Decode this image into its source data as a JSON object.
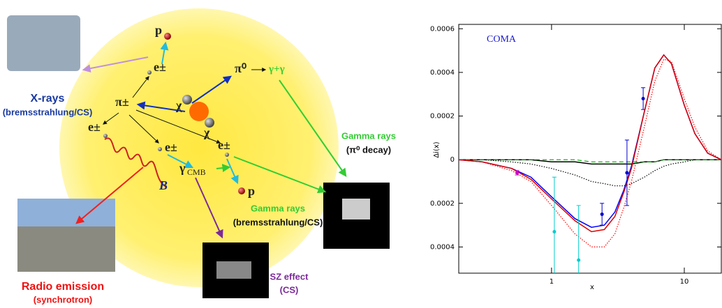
{
  "diagram": {
    "labels": {
      "p_top": "p",
      "e_top": "e±",
      "pi0": "π⁰",
      "gg": "γ+γ",
      "pipm": "π±",
      "chi1": "χ",
      "chi2": "χ",
      "e_left": "e±",
      "e_mid": "e±",
      "e_right": "e±",
      "gamma": "γ",
      "cmb": "CMB",
      "B": "B",
      "p_bottom": "p"
    },
    "captions": {
      "xrays": "X-rays",
      "xrays_sub": "(bremsstrahlung/CS)",
      "gamma1": "Gamma rays",
      "gamma1_sub": "(π⁰ decay)",
      "gamma2": "Gamma rays",
      "gamma2_sub": "(bremsstrahlung/CS)",
      "radio": "Radio emission",
      "radio_sub": "(synchrotron)",
      "sz": "SZ effect",
      "sz_sub": "(CS)"
    }
  },
  "chart_data": {
    "type": "line",
    "annotation": "COMA",
    "ylabel": "Δi(x)",
    "xlabel": "x",
    "xscale": "log",
    "xlim": [
      0.2,
      19
    ],
    "xticks": [
      1,
      10
    ],
    "ylim": [
      -0.00052,
      0.00062
    ],
    "yticks": [
      0.0006,
      0.0004,
      0.0002,
      0,
      {
        "value": -0.0002,
        "label": "0.0002"
      },
      {
        "value": -0.0004,
        "label": "0.0004"
      }
    ],
    "x": [
      0.2,
      0.3,
      0.5,
      0.7,
      1,
      1.5,
      2,
      2.5,
      3,
      3.5,
      4,
      5,
      6,
      7,
      8,
      10,
      12,
      15,
      19
    ],
    "series": [
      {
        "color": "#000000",
        "dash": "solid",
        "values": [
          0,
          0,
          0,
          0,
          -1e-05,
          -1e-05,
          -2e-05,
          -2e-05,
          -2e-05,
          -2e-05,
          -2e-05,
          -1e-05,
          -1e-05,
          0,
          0,
          0,
          0,
          0,
          0
        ]
      },
      {
        "color": "#000000",
        "dash": "dotted",
        "values": [
          0,
          0,
          -1e-05,
          -2e-05,
          -4e-05,
          -7e-05,
          -0.0001,
          -0.00011,
          -0.00012,
          -0.00012,
          -0.00011,
          -8e-05,
          -5e-05,
          -3e-05,
          -2e-05,
          -1e-05,
          0,
          0,
          0
        ]
      },
      {
        "color": "#00aa00",
        "dash": "dashed",
        "values": [
          0,
          0,
          0,
          0,
          0,
          0,
          -1e-05,
          -1e-05,
          -1e-05,
          -1e-05,
          -1e-05,
          -1e-05,
          -1e-05,
          0,
          0,
          0,
          0,
          0,
          0
        ]
      },
      {
        "color": "#ff0000",
        "dash": "dotted",
        "values": [
          0,
          -1e-05,
          -5e-05,
          -0.0001,
          -0.00021,
          -0.00034,
          -0.0004,
          -0.0004,
          -0.00034,
          -0.00022,
          -0.0001,
          0.00015,
          0.00036,
          0.00046,
          0.00045,
          0.00028,
          0.00015,
          4e-05,
          0
        ]
      },
      {
        "color": "#0000ff",
        "dash": "solid",
        "values": [
          0,
          -1e-05,
          -4e-05,
          -8e-05,
          -0.00017,
          -0.00027,
          -0.00031,
          -0.0003,
          -0.00024,
          -0.00014,
          -3e-05,
          0.00022,
          0.00042,
          0.00048,
          0.00044,
          0.00025,
          0.00012,
          3e-05,
          0
        ]
      },
      {
        "color": "#dd0000",
        "dash": "solid",
        "values": [
          0,
          -1e-05,
          -4e-05,
          -9e-05,
          -0.00018,
          -0.00028,
          -0.00033,
          -0.00032,
          -0.00026,
          -0.00015,
          -4e-05,
          0.00022,
          0.00042,
          0.00048,
          0.00044,
          0.00025,
          0.00012,
          3e-05,
          0
        ]
      }
    ],
    "points": [
      {
        "x": 0.55,
        "y": -6e-05,
        "err": 1e-05,
        "color": "#cc00cc"
      },
      {
        "x": 1.05,
        "y": -0.00033,
        "err": 0.00025,
        "color": "#00cccc"
      },
      {
        "x": 1.6,
        "y": -0.00046,
        "err": 0.00025,
        "color": "#00cccc"
      },
      {
        "x": 2.4,
        "y": -0.00025,
        "err": 5e-05,
        "color": "#0000cc"
      },
      {
        "x": 3.7,
        "y": -6e-05,
        "err": 0.00015,
        "color": "#0000cc"
      },
      {
        "x": 4.9,
        "y": 0.00028,
        "err": 5e-05,
        "color": "#0000cc"
      }
    ]
  }
}
